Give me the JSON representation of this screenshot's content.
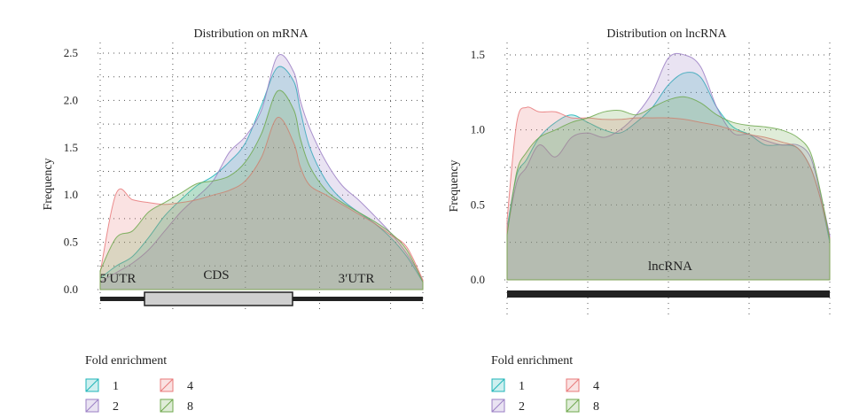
{
  "chart_data": [
    {
      "type": "area",
      "title": "Distribution on mRNA",
      "xlabel": "",
      "ylabel": "Frequency",
      "ylim": [
        0,
        2.5
      ],
      "yticks": [
        "0.0",
        "0.5",
        "1.0",
        "1.5",
        "2.0",
        "2.5"
      ],
      "xlim": [
        0,
        1
      ],
      "grid": true,
      "regions": [
        {
          "label": "5′UTR"
        },
        {
          "label": "CDS"
        },
        {
          "label": "3′UTR"
        }
      ],
      "x": [
        0,
        0.05,
        0.1,
        0.15,
        0.2,
        0.25,
        0.3,
        0.35,
        0.4,
        0.45,
        0.5,
        0.55,
        0.6,
        0.62,
        0.65,
        0.7,
        0.75,
        0.8,
        0.85,
        0.9,
        0.95,
        1
      ],
      "series": [
        {
          "name": "1",
          "color": "#1fb4b8",
          "values": [
            0.12,
            0.25,
            0.35,
            0.55,
            0.78,
            0.95,
            1.1,
            1.2,
            1.35,
            1.55,
            1.95,
            2.35,
            2.2,
            1.9,
            1.5,
            1.15,
            0.95,
            0.82,
            0.7,
            0.55,
            0.35,
            0.08
          ]
        },
        {
          "name": "2",
          "color": "#9b7fc4",
          "values": [
            0.08,
            0.18,
            0.28,
            0.42,
            0.62,
            0.82,
            0.98,
            1.15,
            1.45,
            1.62,
            1.9,
            2.47,
            2.3,
            2.0,
            1.7,
            1.35,
            1.1,
            0.95,
            0.78,
            0.6,
            0.38,
            0.1
          ]
        },
        {
          "name": "4",
          "color": "#e8797a",
          "values": [
            0.18,
            1.02,
            0.95,
            0.92,
            0.9,
            0.92,
            0.95,
            1.0,
            1.05,
            1.15,
            1.4,
            1.82,
            1.55,
            1.3,
            1.1,
            1.0,
            0.9,
            0.8,
            0.7,
            0.58,
            0.45,
            0.1
          ]
        },
        {
          "name": "8",
          "color": "#6fa84d",
          "values": [
            0.2,
            0.55,
            0.62,
            0.82,
            0.92,
            1.02,
            1.12,
            1.15,
            1.2,
            1.35,
            1.65,
            2.1,
            1.9,
            1.6,
            1.3,
            1.05,
            0.92,
            0.82,
            0.72,
            0.6,
            0.42,
            0.08
          ]
        }
      ],
      "legend": {
        "title": "Fold enrichment",
        "position": "bottom"
      }
    },
    {
      "type": "area",
      "title": "Distribution on lncRNA",
      "xlabel": "",
      "ylabel": "Frequency",
      "ylim": [
        0,
        1.5
      ],
      "yticks": [
        "0.0",
        "0.5",
        "1.0",
        "1.5"
      ],
      "xlim": [
        0,
        1
      ],
      "grid": true,
      "regions": [
        {
          "label": "lncRNA"
        }
      ],
      "x": [
        0,
        0.03,
        0.06,
        0.1,
        0.15,
        0.2,
        0.25,
        0.3,
        0.35,
        0.4,
        0.45,
        0.5,
        0.55,
        0.6,
        0.65,
        0.7,
        0.75,
        0.8,
        0.85,
        0.9,
        0.94,
        0.97,
        1
      ],
      "series": [
        {
          "name": "1",
          "color": "#1fb4b8",
          "values": [
            0.35,
            0.7,
            0.8,
            0.95,
            1.05,
            1.1,
            1.05,
            1.0,
            0.98,
            1.05,
            1.15,
            1.3,
            1.38,
            1.35,
            1.15,
            1.02,
            0.97,
            0.9,
            0.9,
            0.88,
            0.75,
            0.55,
            0.25
          ]
        },
        {
          "name": "2",
          "color": "#9b7fc4",
          "values": [
            0.32,
            0.65,
            0.75,
            0.9,
            0.82,
            0.95,
            0.98,
            0.95,
            1.0,
            1.1,
            1.25,
            1.48,
            1.5,
            1.42,
            1.15,
            0.98,
            0.97,
            0.93,
            0.9,
            0.9,
            0.82,
            0.58,
            0.3
          ]
        },
        {
          "name": "4",
          "color": "#e8797a",
          "values": [
            0.4,
            1.05,
            1.15,
            1.12,
            1.12,
            1.08,
            1.08,
            1.07,
            1.07,
            1.08,
            1.08,
            1.08,
            1.07,
            1.05,
            1.03,
            1.0,
            0.97,
            0.95,
            0.92,
            0.88,
            0.75,
            0.55,
            0.28
          ]
        },
        {
          "name": "8",
          "color": "#6fa84d",
          "values": [
            0.3,
            0.72,
            0.85,
            0.95,
            1.0,
            1.05,
            1.08,
            1.12,
            1.13,
            1.1,
            1.15,
            1.2,
            1.22,
            1.18,
            1.1,
            1.05,
            1.03,
            1.02,
            1.0,
            0.95,
            0.85,
            0.6,
            0.27
          ]
        }
      ],
      "legend": {
        "title": "Fold enrichment",
        "position": "bottom"
      }
    }
  ],
  "legend_items": [
    "1",
    "2",
    "4",
    "8"
  ]
}
